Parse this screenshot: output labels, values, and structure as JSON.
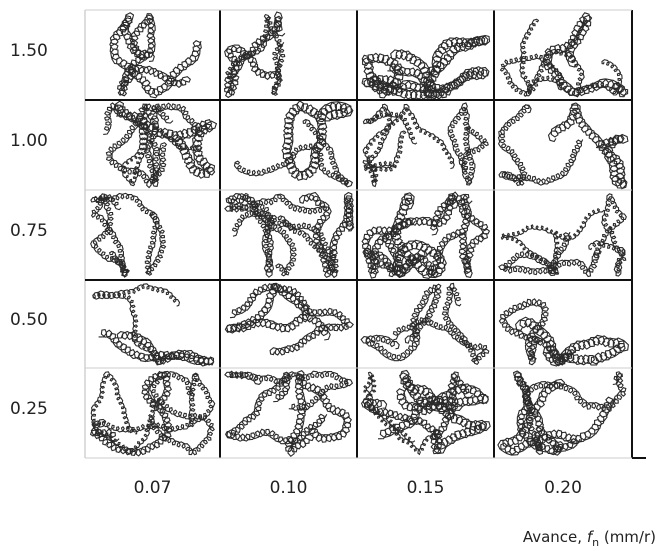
{
  "row_labels": [
    "1.50",
    "1.00",
    "0.75",
    "0.50",
    "0.25"
  ],
  "column_labels": [
    "0.07",
    "0.10",
    "0.15",
    "0.20"
  ],
  "axis_label": {
    "prefix": "Avance, ",
    "variable": "f",
    "subscript": "n",
    "unit": " (mm/r)"
  }
}
